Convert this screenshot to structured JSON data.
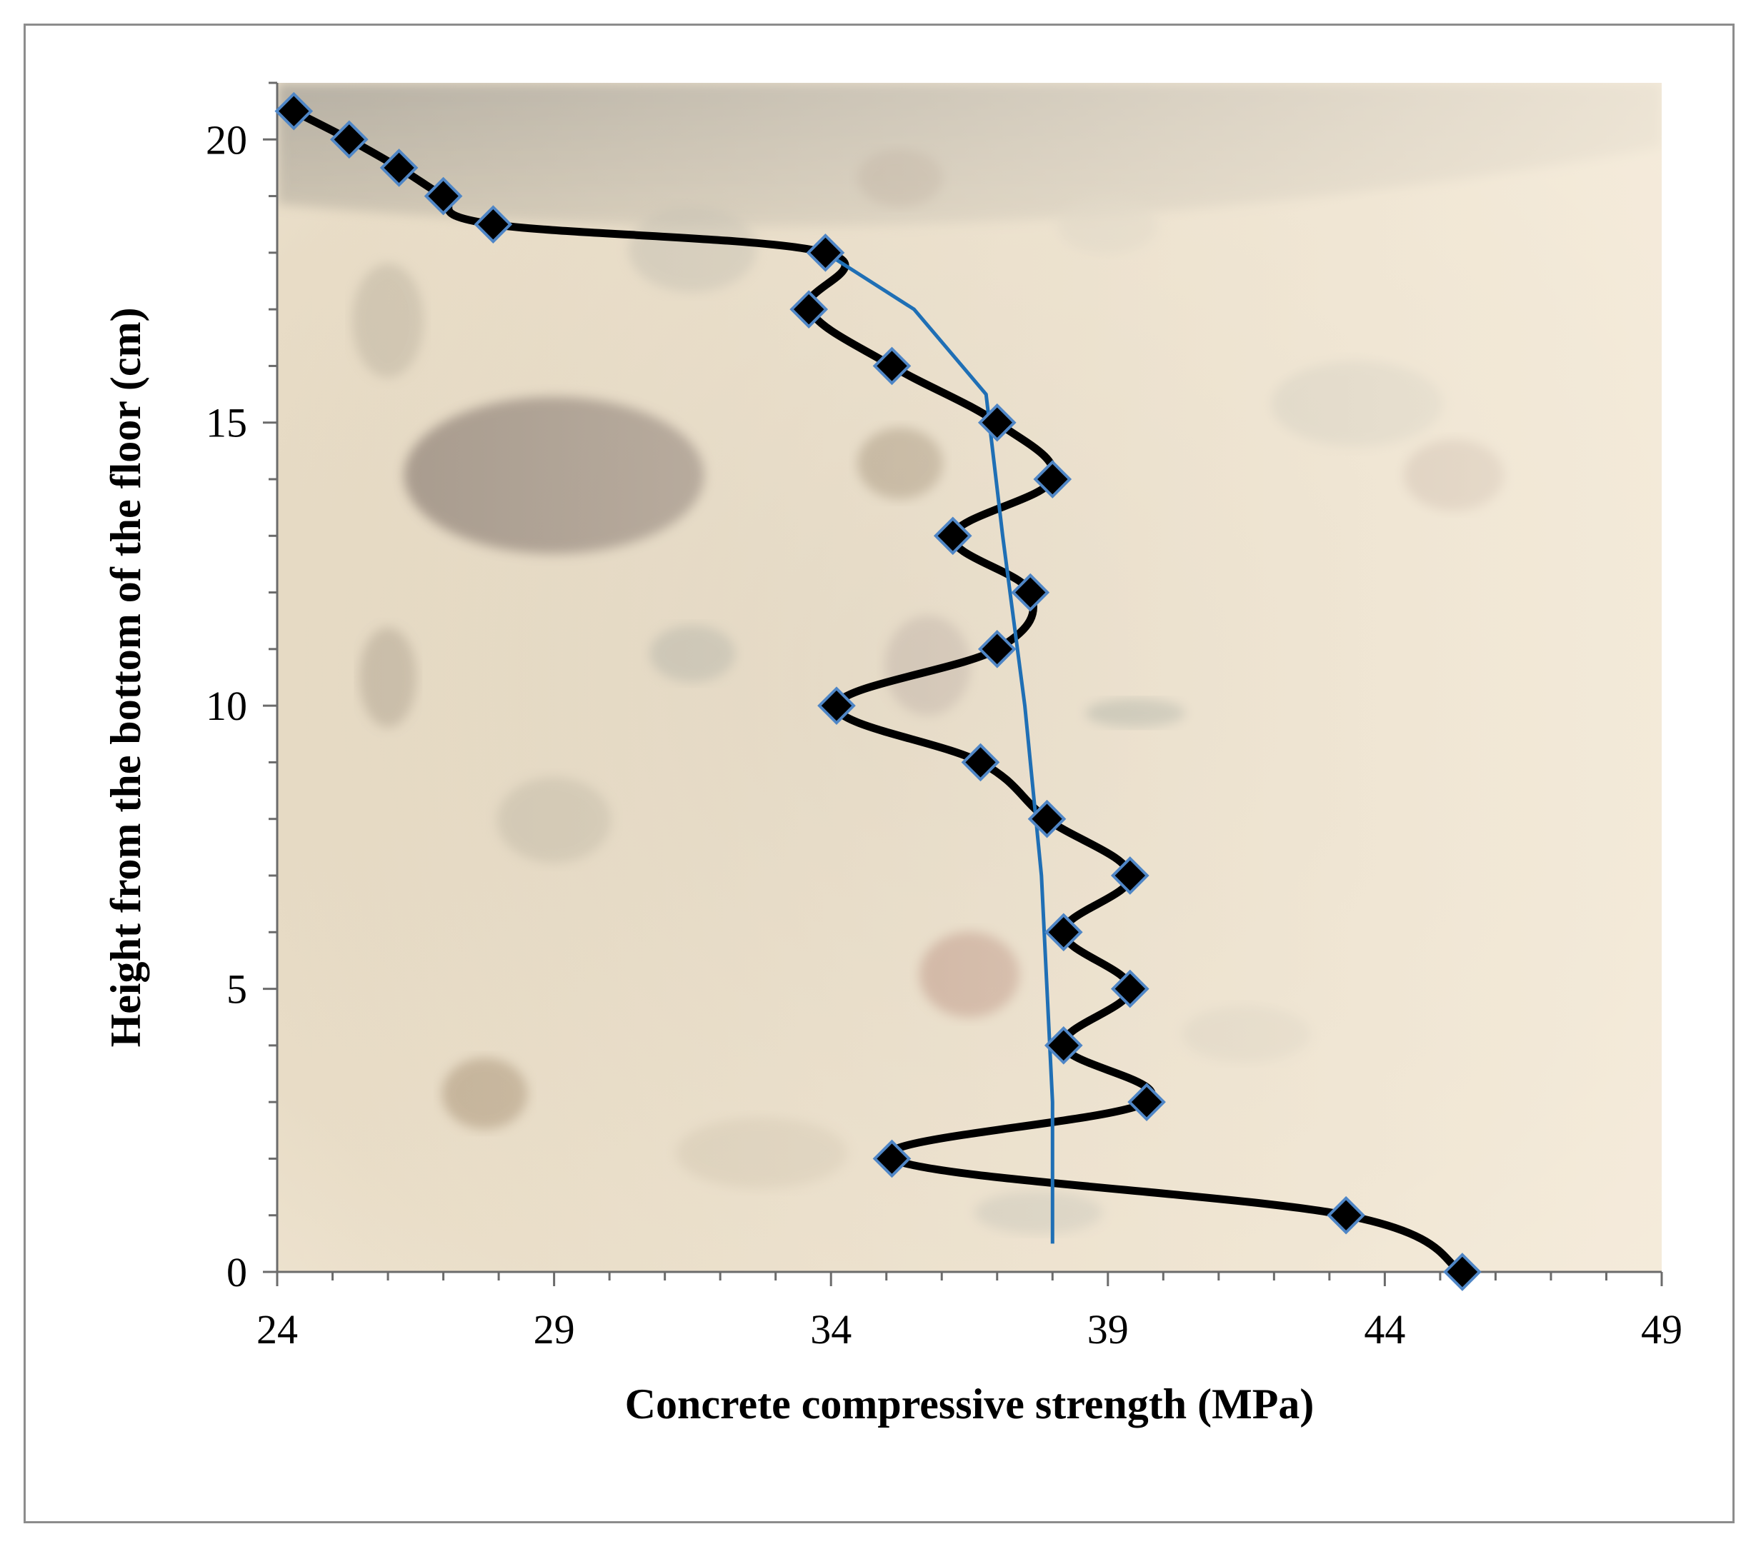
{
  "chart_data": {
    "type": "scatter",
    "title": "",
    "xlabel": "Concrete compressive strength (MPa)",
    "ylabel": "Height from the bottom of the floor (cm)",
    "xlim": [
      24,
      49
    ],
    "ylim": [
      0,
      21
    ],
    "x_ticks": [
      24,
      29,
      34,
      39,
      44,
      49
    ],
    "y_ticks": [
      0,
      5,
      10,
      15,
      20
    ],
    "grid": false,
    "legend": "none",
    "background": "photograph of a concrete core cross-section",
    "series": [
      {
        "marker": "diamond",
        "line": "smoothed",
        "color": "#000000",
        "marker_fill": "#000000",
        "marker_edge": "#4f86c6",
        "points": [
          {
            "x": 24.3,
            "y": 20.5
          },
          {
            "x": 25.3,
            "y": 20.0
          },
          {
            "x": 26.2,
            "y": 19.5
          },
          {
            "x": 27.0,
            "y": 19.0
          },
          {
            "x": 27.9,
            "y": 18.5
          },
          {
            "x": 33.9,
            "y": 18.0
          },
          {
            "x": 33.6,
            "y": 17.0
          },
          {
            "x": 35.1,
            "y": 16.0
          },
          {
            "x": 37.0,
            "y": 15.0
          },
          {
            "x": 38.0,
            "y": 14.0
          },
          {
            "x": 36.2,
            "y": 13.0
          },
          {
            "x": 37.6,
            "y": 12.0
          },
          {
            "x": 37.0,
            "y": 11.0
          },
          {
            "x": 34.1,
            "y": 10.0
          },
          {
            "x": 36.7,
            "y": 9.0
          },
          {
            "x": 37.9,
            "y": 8.0
          },
          {
            "x": 39.4,
            "y": 7.0
          },
          {
            "x": 38.2,
            "y": 6.0
          },
          {
            "x": 39.4,
            "y": 5.0
          },
          {
            "x": 38.2,
            "y": 4.0
          },
          {
            "x": 39.7,
            "y": 3.0
          },
          {
            "x": 35.1,
            "y": 2.0
          },
          {
            "x": 43.3,
            "y": 1.0
          },
          {
            "x": 45.4,
            "y": 0.0
          }
        ]
      },
      {
        "marker": "none",
        "line": "straight",
        "color": "#1f6fb5",
        "points": [
          {
            "x": 33.9,
            "y": 18.0
          },
          {
            "x": 35.5,
            "y": 17.0
          },
          {
            "x": 36.8,
            "y": 15.5
          },
          {
            "x": 37.1,
            "y": 13.0
          },
          {
            "x": 37.5,
            "y": 10.0
          },
          {
            "x": 37.8,
            "y": 7.0
          },
          {
            "x": 38.0,
            "y": 3.0
          },
          {
            "x": 38.0,
            "y": 0.5
          }
        ]
      }
    ]
  }
}
